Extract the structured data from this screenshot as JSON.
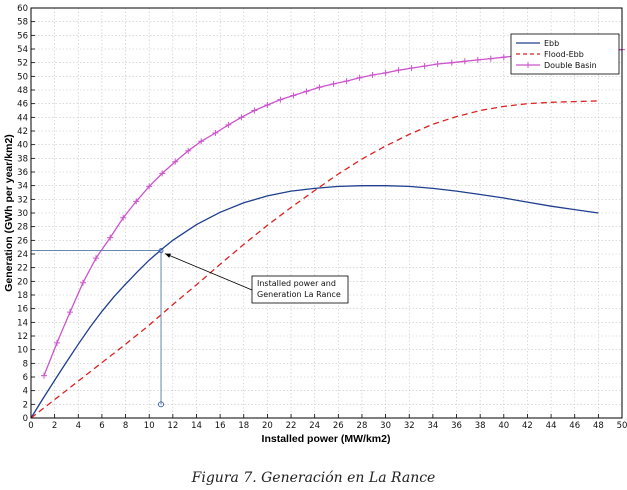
{
  "chart_data": {
    "type": "line",
    "xlabel": "Installed power (MW/km2)",
    "ylabel": "Generation (GWh per year/km2)",
    "xlim": [
      0,
      50
    ],
    "ylim": [
      0,
      60
    ],
    "xticks": [
      0,
      2,
      4,
      6,
      8,
      10,
      12,
      14,
      16,
      18,
      20,
      22,
      24,
      26,
      28,
      30,
      32,
      34,
      36,
      38,
      40,
      42,
      44,
      46,
      48,
      50
    ],
    "yticks": [
      0,
      2,
      4,
      6,
      8,
      10,
      12,
      14,
      16,
      18,
      20,
      22,
      24,
      26,
      28,
      30,
      32,
      34,
      36,
      38,
      40,
      42,
      44,
      46,
      48,
      50,
      52,
      54,
      56,
      58,
      60
    ],
    "grid": true,
    "legend_position": "top-right",
    "series": [
      {
        "name": "Ebb",
        "color": "#1f3e8f",
        "style": "solid",
        "marker": "none",
        "x": [
          0,
          1,
          2,
          3,
          4,
          5,
          6,
          7,
          8,
          9,
          10,
          11,
          12,
          14,
          16,
          18,
          20,
          22,
          24,
          26,
          28,
          30,
          32,
          34,
          36,
          38,
          40,
          42,
          44,
          46,
          48
        ],
        "y": [
          0,
          2.8,
          5.5,
          8.2,
          10.8,
          13.3,
          15.6,
          17.7,
          19.6,
          21.4,
          23.1,
          24.6,
          26,
          28.3,
          30.1,
          31.5,
          32.5,
          33.2,
          33.6,
          33.9,
          34,
          34,
          33.9,
          33.6,
          33.2,
          32.7,
          32.2,
          31.6,
          31,
          30.5,
          30
        ]
      },
      {
        "name": "Flood-Ebb",
        "color": "#dd2222",
        "style": "dashed",
        "marker": "none",
        "x": [
          0,
          2,
          4,
          6,
          8,
          10,
          12,
          14,
          16,
          18,
          20,
          22,
          24,
          26,
          28,
          30,
          32,
          34,
          36,
          38,
          40,
          42,
          44,
          46,
          48
        ],
        "y": [
          0,
          2.7,
          5.4,
          8.1,
          10.8,
          13.6,
          16.6,
          19.5,
          22.5,
          25.4,
          28.2,
          30.8,
          33.3,
          35.7,
          37.9,
          39.8,
          41.5,
          43,
          44.1,
          45,
          45.6,
          46,
          46.2,
          46.3,
          46.4
        ]
      },
      {
        "name": "Double Basin",
        "color": "#cc55cc",
        "style": "solid",
        "marker": "+",
        "x": [
          1.1,
          2.2,
          3.3,
          4.4,
          5.5,
          6.7,
          7.8,
          8.9,
          10,
          11.1,
          12.2,
          13.3,
          14.4,
          15.6,
          16.7,
          17.8,
          18.9,
          20,
          21.1,
          22.2,
          23.3,
          24.4,
          25.6,
          26.7,
          27.8,
          28.9,
          30,
          31.1,
          32.2,
          33.3,
          34.4,
          35.6,
          36.7,
          37.8,
          38.9,
          40,
          41.1,
          42.2,
          43.3,
          44.4,
          45.6,
          46.7,
          47.8,
          48.9,
          50
        ],
        "y": [
          6.2,
          11,
          15.5,
          19.8,
          23.4,
          26.4,
          29.3,
          31.7,
          33.9,
          35.8,
          37.5,
          39.1,
          40.5,
          41.7,
          42.9,
          44,
          45,
          45.8,
          46.6,
          47.2,
          47.8,
          48.4,
          48.9,
          49.3,
          49.8,
          50.2,
          50.5,
          50.9,
          51.2,
          51.5,
          51.8,
          52,
          52.2,
          52.4,
          52.6,
          52.8,
          53,
          53.1,
          53.3,
          53.4,
          53.5,
          53.6,
          53.7,
          53.8,
          53.9
        ]
      }
    ],
    "annotation": {
      "lines": [
        "Installed power and",
        "Generation La Rance"
      ],
      "point": {
        "x": 11,
        "y": 24.5
      },
      "marker_point": {
        "x": 11,
        "y": 2
      }
    }
  },
  "caption": "Figura 7. Generación en La Rance"
}
